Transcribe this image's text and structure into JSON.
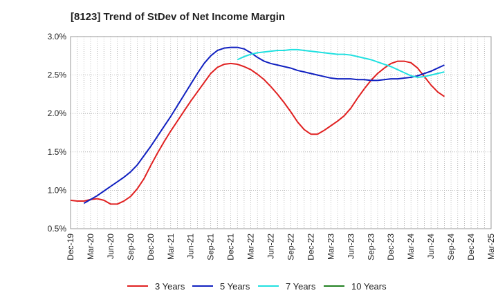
{
  "chart_data": {
    "type": "line",
    "title": "[8123]  Trend of StDev of Net Income Margin",
    "xlabel": "",
    "ylabel": "",
    "ylim": [
      0.5,
      3.0
    ],
    "ytick_values": [
      0.5,
      1.0,
      1.5,
      2.0,
      2.5,
      3.0
    ],
    "ytick_labels": [
      "0.5%",
      "1.0%",
      "1.5%",
      "2.0%",
      "2.5%",
      "3.0%"
    ],
    "xtick_labels": [
      "Dec-19",
      "Mar-20",
      "Jun-20",
      "Sep-20",
      "Dec-20",
      "Mar-21",
      "Jun-21",
      "Sep-21",
      "Dec-21",
      "Mar-22",
      "Jun-22",
      "Sep-22",
      "Dec-22",
      "Mar-23",
      "Jun-23",
      "Sep-23",
      "Dec-23",
      "Mar-24",
      "Jun-24",
      "Sep-24",
      "Dec-24",
      "Mar-25"
    ],
    "grid": true,
    "legend_position": "bottom",
    "series": [
      {
        "name": "3 Years",
        "color": "#e02020",
        "points": [
          [
            0,
            0.87
          ],
          [
            1,
            0.86
          ],
          [
            2,
            0.86
          ],
          [
            3,
            0.88
          ],
          [
            4,
            0.89
          ],
          [
            5,
            0.87
          ],
          [
            6,
            0.82
          ],
          [
            7,
            0.82
          ],
          [
            8,
            0.86
          ],
          [
            9,
            0.92
          ],
          [
            10,
            1.02
          ],
          [
            11,
            1.15
          ],
          [
            12,
            1.32
          ],
          [
            13,
            1.48
          ],
          [
            14,
            1.63
          ],
          [
            15,
            1.77
          ],
          [
            16,
            1.9
          ],
          [
            17,
            2.03
          ],
          [
            18,
            2.16
          ],
          [
            19,
            2.28
          ],
          [
            20,
            2.4
          ],
          [
            21,
            2.52
          ],
          [
            22,
            2.6
          ],
          [
            23,
            2.64
          ],
          [
            24,
            2.65
          ],
          [
            25,
            2.64
          ],
          [
            26,
            2.61
          ],
          [
            27,
            2.57
          ],
          [
            28,
            2.51
          ],
          [
            29,
            2.44
          ],
          [
            30,
            2.35
          ],
          [
            31,
            2.25
          ],
          [
            32,
            2.14
          ],
          [
            33,
            2.02
          ],
          [
            34,
            1.89
          ],
          [
            35,
            1.79
          ],
          [
            36,
            1.73
          ],
          [
            37,
            1.73
          ],
          [
            38,
            1.78
          ],
          [
            39,
            1.84
          ],
          [
            40,
            1.9
          ],
          [
            41,
            1.97
          ],
          [
            42,
            2.07
          ],
          [
            43,
            2.2
          ],
          [
            44,
            2.32
          ],
          [
            45,
            2.43
          ],
          [
            46,
            2.52
          ],
          [
            47,
            2.59
          ],
          [
            48,
            2.65
          ],
          [
            49,
            2.68
          ],
          [
            50,
            2.68
          ],
          [
            51,
            2.66
          ],
          [
            52,
            2.59
          ],
          [
            53,
            2.48
          ],
          [
            54,
            2.37
          ],
          [
            55,
            2.28
          ],
          [
            56,
            2.22
          ]
        ]
      },
      {
        "name": "5 Years",
        "color": "#1020c0",
        "points": [
          [
            2,
            0.83
          ],
          [
            3,
            0.88
          ],
          [
            4,
            0.93
          ],
          [
            5,
            0.99
          ],
          [
            6,
            1.05
          ],
          [
            7,
            1.11
          ],
          [
            8,
            1.17
          ],
          [
            9,
            1.24
          ],
          [
            10,
            1.33
          ],
          [
            11,
            1.45
          ],
          [
            12,
            1.57
          ],
          [
            13,
            1.7
          ],
          [
            14,
            1.83
          ],
          [
            15,
            1.96
          ],
          [
            16,
            2.1
          ],
          [
            17,
            2.24
          ],
          [
            18,
            2.38
          ],
          [
            19,
            2.52
          ],
          [
            20,
            2.65
          ],
          [
            21,
            2.75
          ],
          [
            22,
            2.82
          ],
          [
            23,
            2.85
          ],
          [
            24,
            2.86
          ],
          [
            25,
            2.86
          ],
          [
            26,
            2.84
          ],
          [
            27,
            2.79
          ],
          [
            28,
            2.73
          ],
          [
            29,
            2.68
          ],
          [
            30,
            2.65
          ],
          [
            31,
            2.63
          ],
          [
            32,
            2.61
          ],
          [
            33,
            2.59
          ],
          [
            34,
            2.56
          ],
          [
            35,
            2.54
          ],
          [
            36,
            2.52
          ],
          [
            37,
            2.5
          ],
          [
            38,
            2.48
          ],
          [
            39,
            2.46
          ],
          [
            40,
            2.45
          ],
          [
            41,
            2.45
          ],
          [
            42,
            2.45
          ],
          [
            43,
            2.44
          ],
          [
            44,
            2.44
          ],
          [
            45,
            2.43
          ],
          [
            46,
            2.43
          ],
          [
            47,
            2.44
          ],
          [
            48,
            2.45
          ],
          [
            49,
            2.45
          ],
          [
            50,
            2.46
          ],
          [
            51,
            2.47
          ],
          [
            52,
            2.49
          ],
          [
            53,
            2.52
          ],
          [
            54,
            2.55
          ],
          [
            55,
            2.59
          ],
          [
            56,
            2.63
          ]
        ]
      },
      {
        "name": "7 Years",
        "color": "#20e0e0",
        "points": [
          [
            25,
            2.7
          ],
          [
            26,
            2.74
          ],
          [
            27,
            2.77
          ],
          [
            28,
            2.79
          ],
          [
            29,
            2.8
          ],
          [
            30,
            2.81
          ],
          [
            31,
            2.82
          ],
          [
            32,
            2.82
          ],
          [
            33,
            2.83
          ],
          [
            34,
            2.83
          ],
          [
            35,
            2.82
          ],
          [
            36,
            2.81
          ],
          [
            37,
            2.8
          ],
          [
            38,
            2.79
          ],
          [
            39,
            2.78
          ],
          [
            40,
            2.77
          ],
          [
            41,
            2.77
          ],
          [
            42,
            2.76
          ],
          [
            43,
            2.74
          ],
          [
            44,
            2.72
          ],
          [
            45,
            2.7
          ],
          [
            46,
            2.67
          ],
          [
            47,
            2.64
          ],
          [
            48,
            2.61
          ],
          [
            49,
            2.57
          ],
          [
            50,
            2.53
          ],
          [
            51,
            2.49
          ],
          [
            52,
            2.47
          ],
          [
            53,
            2.48
          ],
          [
            54,
            2.5
          ],
          [
            55,
            2.52
          ],
          [
            56,
            2.54
          ]
        ]
      },
      {
        "name": "10 Years",
        "color": "#208020",
        "points": []
      }
    ]
  }
}
